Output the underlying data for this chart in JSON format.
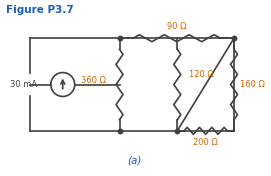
{
  "title": "Figure P3.7",
  "label_a": "(a)",
  "resistors": {
    "R90": "90 Ω",
    "R120": "120 Ω",
    "R160": "160 Ω",
    "R200": "200 Ω",
    "R360": "360 Ω"
  },
  "source_label": "30 mA",
  "title_color": "#1a5fb4",
  "label_color": "#1a5fb4",
  "wire_color": "#404040",
  "text_color": "#cc6600",
  "background_color": "#ffffff",
  "fig_width": 2.71,
  "fig_height": 1.76,
  "dpi": 100
}
